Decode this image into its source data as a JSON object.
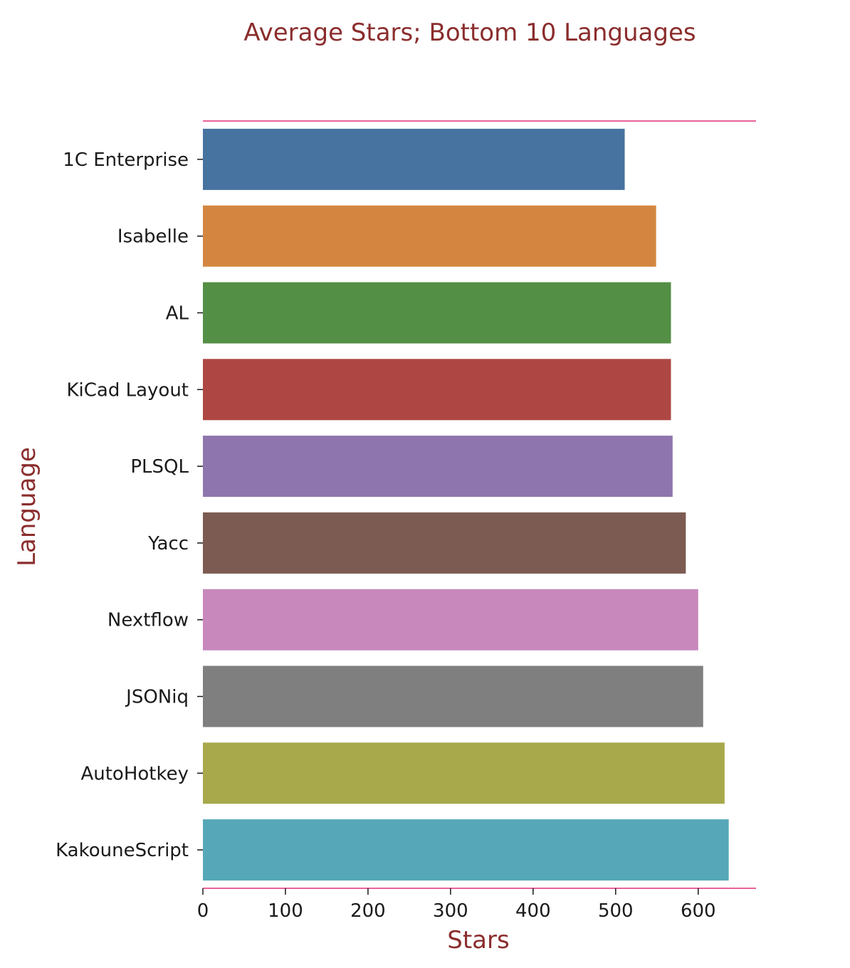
{
  "chart_data": {
    "type": "bar",
    "orientation": "horizontal",
    "title": "Average Stars; Bottom 10 Languages",
    "xlabel": "Stars",
    "ylabel": "Language",
    "categories": [
      "1C Enterprise",
      "Isabelle",
      "AL",
      "KiCad Layout",
      "PLSQL",
      "Yacc",
      "Nextflow",
      "JSONiq",
      "AutoHotkey",
      "KakouneScript"
    ],
    "values": [
      511,
      549,
      567,
      567,
      569,
      585,
      600,
      606,
      632,
      637
    ],
    "colors": [
      "#4673a0",
      "#d48640",
      "#538f45",
      "#ae4743",
      "#8f75ae",
      "#7c5c52",
      "#c888bc",
      "#7f7f7f",
      "#a8a94b",
      "#56a8b8"
    ],
    "xlim": [
      0,
      670
    ],
    "xticks": [
      0,
      100,
      200,
      300,
      400,
      500,
      600
    ],
    "grid": false,
    "spine_color": "#e8629a",
    "text_color": "#8b2d2d"
  }
}
